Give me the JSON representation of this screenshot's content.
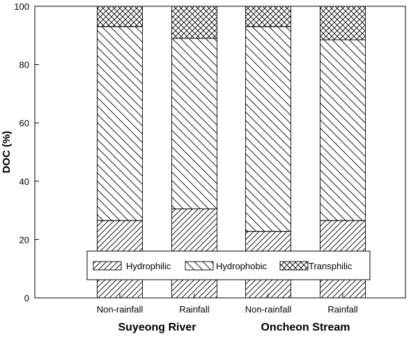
{
  "chart_data": {
    "type": "bar",
    "stacked": true,
    "categories": [
      "Non-rainfall",
      "Rainfall",
      "Non-rainfall",
      "Rainfall"
    ],
    "groups": [
      {
        "label": "Suyeong River",
        "categories": [
          0,
          1
        ]
      },
      {
        "label": "Oncheon Stream",
        "categories": [
          2,
          3
        ]
      }
    ],
    "series": [
      {
        "name": "Hydrophilic",
        "pattern": "forward-hatch",
        "values": [
          26.5,
          30.5,
          22.8,
          26.5
        ]
      },
      {
        "name": "Hydrophobic",
        "pattern": "backward-hatch",
        "values": [
          66.5,
          58.5,
          70.2,
          62.0
        ]
      },
      {
        "name": "Transphilic",
        "pattern": "cross-hatch",
        "values": [
          7.0,
          11.0,
          7.0,
          11.5
        ]
      }
    ],
    "xlabel": "",
    "ylabel": "DOC (%)",
    "ylim": [
      0,
      100
    ],
    "yticks": [
      0,
      20,
      40,
      60,
      80,
      100
    ],
    "grid": false,
    "legend_position": "bottom-inside",
    "colors": {
      "stroke": "#000000",
      "background": "#ffffff"
    }
  }
}
